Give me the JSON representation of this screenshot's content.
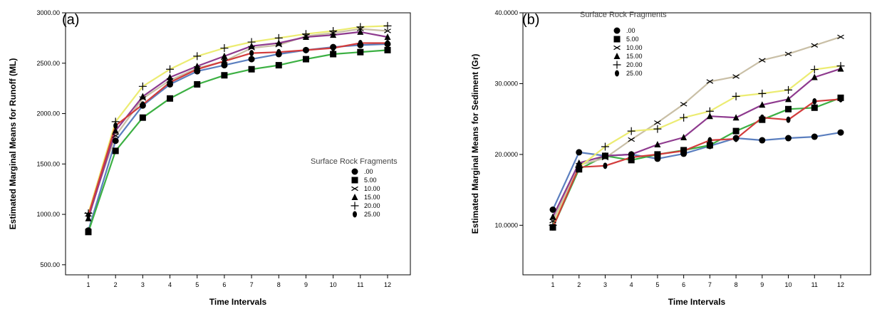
{
  "chart_data": [
    {
      "type": "line",
      "panel_label": "(a)",
      "xlabel": "Time Intervals",
      "ylabel": "Estimated Marginal Means for Runoff (ML)",
      "x": [
        1,
        2,
        3,
        4,
        5,
        6,
        7,
        8,
        9,
        10,
        11,
        12
      ],
      "x_tick_labels": [
        "1",
        "2",
        "3",
        "4",
        "5",
        "6",
        "7",
        "8",
        "9",
        "10",
        "11",
        "12"
      ],
      "ylim": [
        400,
        3000
      ],
      "y_ticks": [
        500,
        1000,
        1500,
        2000,
        2500,
        3000
      ],
      "y_tick_labels": [
        "500.00",
        "1000.00",
        "1500.00",
        "2000.00",
        "2500.00",
        "3000.00"
      ],
      "legend_title": "Surface Rock Fragments",
      "legend_position": "right-center",
      "series": [
        {
          "name": ".00",
          "marker": "circle",
          "color": "#5b7fbf",
          "values": [
            840,
            1730,
            2080,
            2290,
            2420,
            2480,
            2540,
            2590,
            2630,
            2660,
            2680,
            2690
          ]
        },
        {
          "name": "5.00",
          "marker": "square",
          "color": "#3cb043",
          "values": [
            825,
            1630,
            1960,
            2150,
            2290,
            2380,
            2440,
            2480,
            2540,
            2590,
            2610,
            2630
          ]
        },
        {
          "name": "10.00",
          "marker": "x",
          "color": "#c9bfa6",
          "values": [
            1000,
            1780,
            2150,
            2330,
            2450,
            2520,
            2650,
            2680,
            2770,
            2800,
            2840,
            2820
          ]
        },
        {
          "name": "15.00",
          "marker": "triangle",
          "color": "#8e3a8e",
          "values": [
            960,
            1830,
            2170,
            2360,
            2470,
            2570,
            2670,
            2700,
            2760,
            2780,
            2810,
            2760
          ]
        },
        {
          "name": "20.00",
          "marker": "plus",
          "color": "#ecec72",
          "values": [
            1010,
            1920,
            2270,
            2440,
            2570,
            2650,
            2710,
            2750,
            2790,
            2820,
            2860,
            2870
          ]
        },
        {
          "name": "25.00",
          "marker": "ellipse",
          "color": "#d23c3c",
          "values": [
            990,
            1880,
            2090,
            2310,
            2440,
            2520,
            2600,
            2610,
            2630,
            2650,
            2700,
            2700
          ]
        }
      ]
    },
    {
      "type": "line",
      "panel_label": "(b)",
      "xlabel": "Time Intervals",
      "ylabel": "Estimated Marginal Means for Sediment (Gr)",
      "x": [
        1,
        2,
        3,
        4,
        5,
        6,
        7,
        8,
        9,
        10,
        11,
        12
      ],
      "x_tick_labels": [
        "1",
        "2",
        "3",
        "4",
        "5",
        "6",
        "7",
        "8",
        "9",
        "10",
        "11",
        "12"
      ],
      "ylim": [
        3,
        40
      ],
      "y_ticks": [
        10,
        20,
        30,
        40
      ],
      "y_tick_labels": [
        "10.0000",
        "20.0000",
        "30.0000",
        "40.0000"
      ],
      "legend_title": "Surface Rock Fragments",
      "legend_position": "top-left",
      "series": [
        {
          "name": ".00",
          "marker": "circle",
          "color": "#5b7fbf",
          "values": [
            12.2,
            20.3,
            19.8,
            20.0,
            19.4,
            20.1,
            21.2,
            22.3,
            22.0,
            22.3,
            22.5,
            23.1
          ]
        },
        {
          "name": "5.00",
          "marker": "square",
          "color": "#3cb043",
          "values": [
            9.7,
            17.9,
            19.8,
            19.2,
            20.0,
            20.6,
            21.3,
            23.3,
            24.9,
            26.4,
            26.6,
            28.0
          ]
        },
        {
          "name": "10.00",
          "marker": "x",
          "color": "#c9bfa6",
          "values": [
            10.6,
            18.5,
            19.5,
            22.1,
            24.5,
            27.1,
            30.3,
            31.0,
            33.3,
            34.2,
            35.4,
            36.6
          ]
        },
        {
          "name": "15.00",
          "marker": "triangle",
          "color": "#8e3a8e",
          "values": [
            11.2,
            18.8,
            19.8,
            20.0,
            21.4,
            22.4,
            25.4,
            25.2,
            27.0,
            27.8,
            30.9,
            32.1
          ]
        },
        {
          "name": "20.00",
          "marker": "plus",
          "color": "#ecec72",
          "values": [
            10.0,
            18.2,
            21.1,
            23.3,
            23.6,
            25.2,
            26.1,
            28.2,
            28.6,
            29.1,
            32.0,
            32.5
          ]
        },
        {
          "name": "25.00",
          "marker": "ellipse",
          "color": "#d23c3c",
          "values": [
            9.7,
            18.2,
            18.4,
            19.6,
            20.0,
            20.5,
            22.0,
            22.2,
            25.2,
            24.9,
            27.5,
            27.8
          ]
        }
      ]
    }
  ]
}
